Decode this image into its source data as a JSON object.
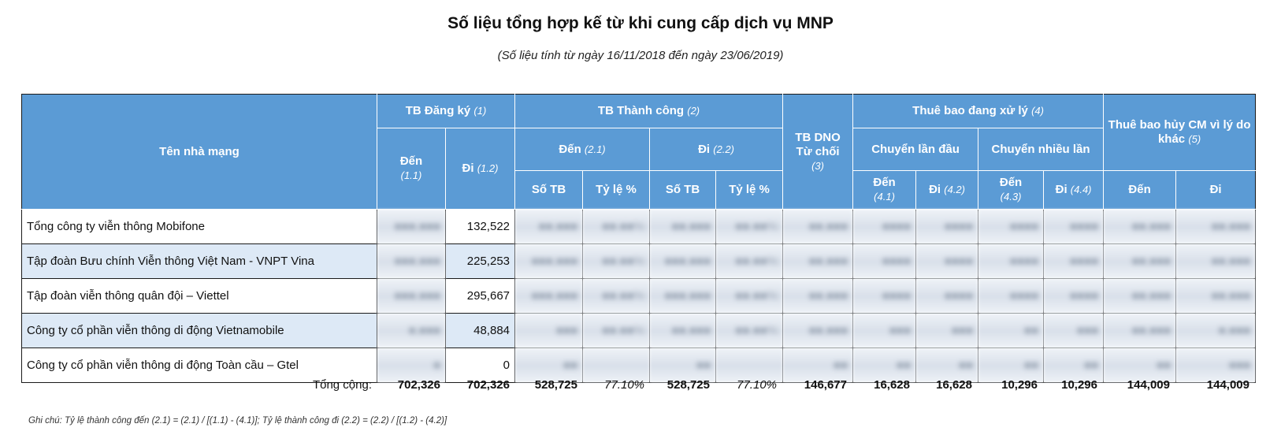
{
  "title": "Số liệu tổng hợp kế từ khi cung cấp dịch vụ MNP",
  "subtitle": "(Số liệu tính từ ngày 16/11/2018 đến ngày 23/06/2019)",
  "headers": {
    "operator": "Tên nhà mạng",
    "registered": {
      "label": "TB Đăng ký",
      "ref": "(1)"
    },
    "registered_in": {
      "label": "Đến",
      "ref": "(1.1)"
    },
    "registered_out": {
      "label": "Đi",
      "ref": "(1.2)"
    },
    "success": {
      "label": "TB Thành công",
      "ref": "(2)"
    },
    "success_in": {
      "label": "Đến",
      "ref": "(2.1)"
    },
    "success_out": {
      "label": "Đi",
      "ref": "(2.2)"
    },
    "count": "Số TB",
    "rate": "Tỷ lệ %",
    "dno": {
      "label_line1": "TB DNO",
      "label_line2": "Từ chối",
      "ref": "(3)"
    },
    "processing": {
      "label": "Thuê bao đang xử lý",
      "ref": "(4)"
    },
    "first_time": "Chuyển lần đầu",
    "multiple": "Chuyển nhiều lần",
    "p_in_1": {
      "label": "Đến",
      "ref": "(4.1)"
    },
    "p_out_1": {
      "label": "Đi",
      "ref": "(4.2)"
    },
    "p_in_2": {
      "label": "Đến",
      "ref": "(4.3)"
    },
    "p_out_2": {
      "label": "Đi",
      "ref": "(4.4)"
    },
    "cancelled": {
      "label": "Thuê bao hủy CM vì lý do khác",
      "ref": "(5)"
    },
    "c_in": "Đến",
    "c_out": "Đi"
  },
  "rows": [
    {
      "name": "Tổng công ty viễn thông Mobifone",
      "registered_out": "132,522"
    },
    {
      "name": "Tập đoàn Bưu chính Viễn thông Việt Nam - VNPT Vina",
      "registered_out": "225,253"
    },
    {
      "name": "Tập đoàn viễn thông quân đội – Viettel",
      "registered_out": "295,667"
    },
    {
      "name": "Công ty cổ phần viễn thông di động Vietnamobile",
      "registered_out": "48,884"
    },
    {
      "name": "Công ty cổ phần viễn thông di động Toàn cầu – Gtel",
      "registered_out": "0"
    }
  ],
  "totals": {
    "label": "Tổng cộng:",
    "registered_in": "702,326",
    "registered_out": "702,326",
    "success_in_count": "528,725",
    "success_in_rate": "77.10%",
    "success_out_count": "528,725",
    "success_out_rate": "77.10%",
    "dno": "146,677",
    "p_in_1": "16,628",
    "p_out_1": "16,628",
    "p_in_2": "10,296",
    "p_out_2": "10,296",
    "c_in": "144,009",
    "c_out": "144,009"
  },
  "note": "Ghi chú: Tỷ lệ thành công đến (2.1) = (2.1) / [(1.1) - (4.1)]; Tỷ lệ thành công đi (2.2) = (2.2) / [(1.2) - (4.2)]"
}
